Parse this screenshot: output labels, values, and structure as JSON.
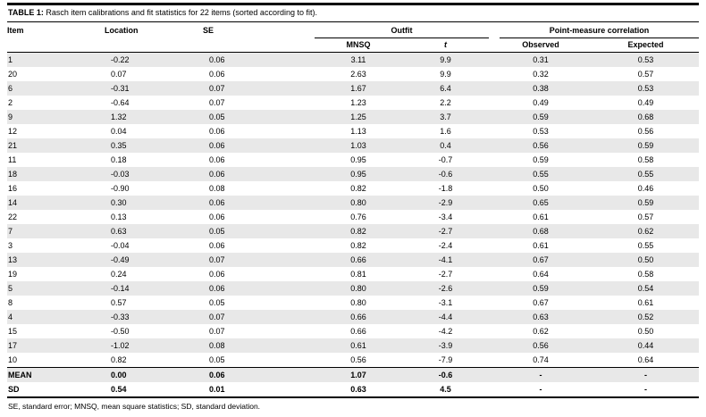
{
  "page": {
    "table_label": "TABLE 1:",
    "table_title": " Rasch item calibrations and fit statistics for 22 items (sorted according to fit).",
    "footnote": "SE, standard error; MNSQ, mean square statistics; SD, standard deviation."
  },
  "table": {
    "headers": {
      "item": "Item",
      "location": "Location",
      "se": "SE",
      "outfit_group": "Outfit",
      "pm_group": "Point-measure correlation",
      "mnsq": "MNSQ",
      "t": "t",
      "observed": "Observed",
      "expected": "Expected"
    },
    "rows": [
      [
        "1",
        "-0.22",
        "0.06",
        "3.11",
        "9.9",
        "0.31",
        "0.53"
      ],
      [
        "20",
        "0.07",
        "0.06",
        "2.63",
        "9.9",
        "0.32",
        "0.57"
      ],
      [
        "6",
        "-0.31",
        "0.07",
        "1.67",
        "6.4",
        "0.38",
        "0.53"
      ],
      [
        "2",
        "-0.64",
        "0.07",
        "1.23",
        "2.2",
        "0.49",
        "0.49"
      ],
      [
        "9",
        "1.32",
        "0.05",
        "1.25",
        "3.7",
        "0.59",
        "0.68"
      ],
      [
        "12",
        "0.04",
        "0.06",
        "1.13",
        "1.6",
        "0.53",
        "0.56"
      ],
      [
        "21",
        "0.35",
        "0.06",
        "1.03",
        "0.4",
        "0.56",
        "0.59"
      ],
      [
        "11",
        "0.18",
        "0.06",
        "0.95",
        "-0.7",
        "0.59",
        "0.58"
      ],
      [
        "18",
        "-0.03",
        "0.06",
        "0.95",
        "-0.6",
        "0.55",
        "0.55"
      ],
      [
        "16",
        "-0.90",
        "0.08",
        "0.82",
        "-1.8",
        "0.50",
        "0.46"
      ],
      [
        "14",
        "0.30",
        "0.06",
        "0.80",
        "-2.9",
        "0.65",
        "0.59"
      ],
      [
        "22",
        "0.13",
        "0.06",
        "0.76",
        "-3.4",
        "0.61",
        "0.57"
      ],
      [
        "7",
        "0.63",
        "0.05",
        "0.82",
        "-2.7",
        "0.68",
        "0.62"
      ],
      [
        "3",
        "-0.04",
        "0.06",
        "0.82",
        "-2.4",
        "0.61",
        "0.55"
      ],
      [
        "13",
        "-0.49",
        "0.07",
        "0.66",
        "-4.1",
        "0.67",
        "0.50"
      ],
      [
        "19",
        "0.24",
        "0.06",
        "0.81",
        "-2.7",
        "0.64",
        "0.58"
      ],
      [
        "5",
        "-0.14",
        "0.06",
        "0.80",
        "-2.6",
        "0.59",
        "0.54"
      ],
      [
        "8",
        "0.57",
        "0.05",
        "0.80",
        "-3.1",
        "0.67",
        "0.61"
      ],
      [
        "4",
        "-0.33",
        "0.07",
        "0.66",
        "-4.4",
        "0.63",
        "0.52"
      ],
      [
        "15",
        "-0.50",
        "0.07",
        "0.66",
        "-4.2",
        "0.62",
        "0.50"
      ],
      [
        "17",
        "-1.02",
        "0.08",
        "0.61",
        "-3.9",
        "0.56",
        "0.44"
      ],
      [
        "10",
        "0.82",
        "0.05",
        "0.56",
        "-7.9",
        "0.74",
        "0.64"
      ]
    ],
    "summary_rows": [
      [
        "MEAN",
        "0.00",
        "0.06",
        "1.07",
        "-0.6",
        "-",
        "-"
      ],
      [
        "SD",
        "0.54",
        "0.01",
        "0.63",
        "4.5",
        "-",
        "-"
      ]
    ],
    "colors": {
      "zebra_row": "#e8e8e8",
      "rule": "#000000"
    }
  }
}
